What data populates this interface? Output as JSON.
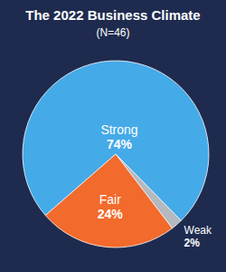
{
  "chart_data": {
    "type": "pie",
    "title": "The 2022 Business Climate",
    "subtitle": "(N=46)",
    "categories": [
      "Strong",
      "Weak",
      "Fair"
    ],
    "values": [
      74,
      2,
      24
    ],
    "value_labels": [
      "74%",
      "2%",
      "24%"
    ],
    "colors": [
      "#45aae8",
      "#b4b8bf",
      "#f26a2c"
    ],
    "data_labels": true
  }
}
